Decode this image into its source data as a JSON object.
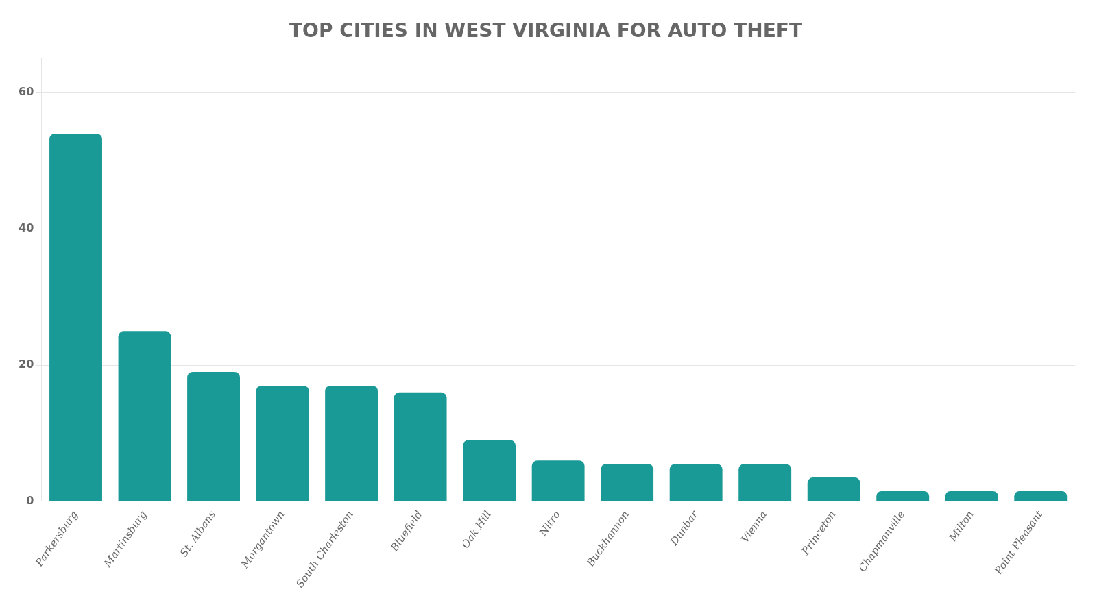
{
  "chart_data": {
    "type": "bar",
    "title": "TOP CITIES IN WEST VIRGINIA FOR AUTO THEFT",
    "categories": [
      "Parkersburg",
      "Martinsburg",
      "St. Albans",
      "Morgantown",
      "South Charleston",
      "Bluefield",
      "Oak Hill",
      "Nitro",
      "Buckhannon",
      "Dunbar",
      "Vienna",
      "Princeton",
      "Chapmanville",
      "Milton",
      "Point Pleasant"
    ],
    "values": [
      54,
      25,
      19,
      17,
      17,
      16,
      9,
      6,
      5.5,
      5.5,
      5.5,
      3.5,
      1.5,
      1.5,
      1.5
    ],
    "color": "#1a9a96",
    "ylim": [
      0,
      65
    ],
    "yticks": [
      0,
      20,
      40,
      60
    ],
    "grid": true
  }
}
